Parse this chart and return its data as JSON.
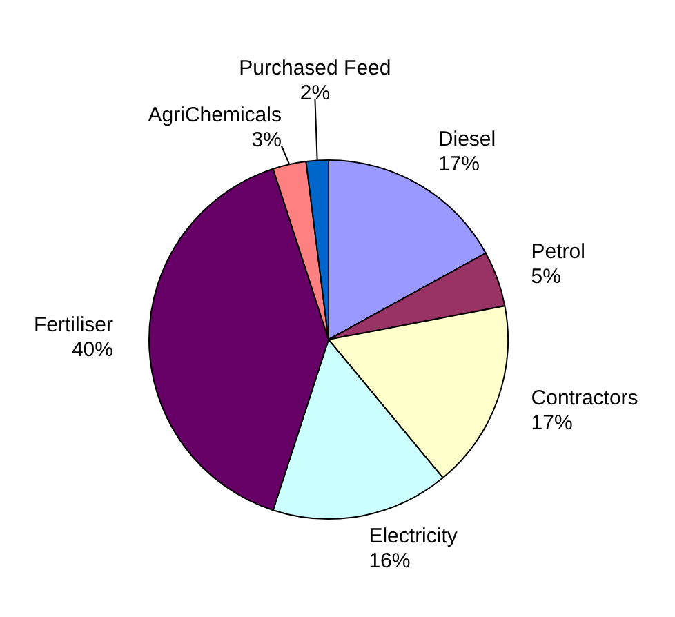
{
  "chart_data": {
    "type": "pie",
    "categories": [
      "Diesel",
      "Petrol",
      "Contractors",
      "Electricity",
      "Fertiliser",
      "AgriChemicals",
      "Purchased Feed"
    ],
    "values": [
      17,
      5,
      17,
      16,
      40,
      3,
      2
    ],
    "colors": [
      "#9999ff",
      "#993366",
      "#ffffcc",
      "#ccffff",
      "#660066",
      "#ff8080",
      "#0066cc"
    ],
    "value_labels": [
      "17%",
      "5%",
      "17%",
      "16%",
      "40%",
      "3%",
      "2%"
    ]
  }
}
